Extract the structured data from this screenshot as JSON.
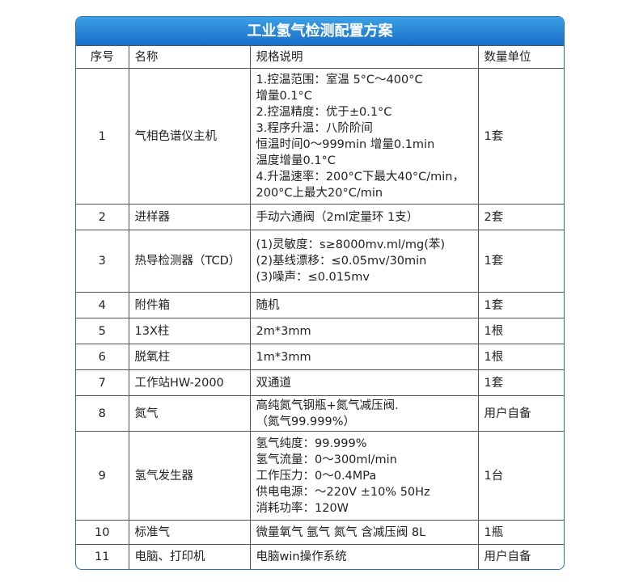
{
  "table": {
    "title": "工业氢气检测配置方案",
    "header": [
      "序号",
      "名称",
      "规格说明",
      "数量单位"
    ],
    "rows": [
      [
        "1",
        "气相色谱仪主机",
        [
          "1.控温范围：室温 5°C～400°C",
          "增量0.1°C",
          "2.控温精度：优于±0.1°C",
          "3.程序升温：八阶阶间",
          "恒温时间0～999min 增量0.1min",
          "温度增量0.1°C",
          "4.升温速率：200°C下最大40°C/min，",
          "200°C上最大20°C/min"
        ],
        "1套"
      ],
      [
        "2",
        "进样器",
        [
          "手动六通阀（2ml定量环 1支）"
        ],
        "2套"
      ],
      [
        "3",
        "热导检测器（TCD）",
        [
          "(1)灵敏度：s≥8000mv.ml/mg(苯)",
          "(2)基线漂移：≤0.05mv/30min",
          "(3)噪声：≤0.015mv"
        ],
        "1套"
      ],
      [
        "4",
        "附件箱",
        [
          "随机"
        ],
        "1套"
      ],
      [
        "5",
        "13X柱",
        [
          "2m*3mm"
        ],
        "1根"
      ],
      [
        "6",
        "脱氧柱",
        [
          "1m*3mm"
        ],
        "1根"
      ],
      [
        "7",
        "工作站HW-2000",
        [
          "双通道"
        ],
        "1套"
      ],
      [
        "8",
        "氮气",
        [
          "高纯氮气钢瓶+氮气减压阀.",
          "（氮气99.999%）"
        ],
        "用户自备"
      ],
      [
        "9",
        "氢气发生器",
        [
          "氢气纯度：99.999%",
          "氢气流量：0～300ml/min",
          "工作压力：0～0.4MPa",
          "供电电源：～220V ±10% 50Hz",
          "消耗功率：120W"
        ],
        "1台"
      ],
      [
        "10",
        "标准气",
        [
          "微量氧气 氩气 氮气 含减压阀 8L"
        ],
        "1瓶"
      ],
      [
        "11",
        "电脑、打印机",
        [
          "电脑win操作系统"
        ],
        "用户自备"
      ]
    ]
  }
}
